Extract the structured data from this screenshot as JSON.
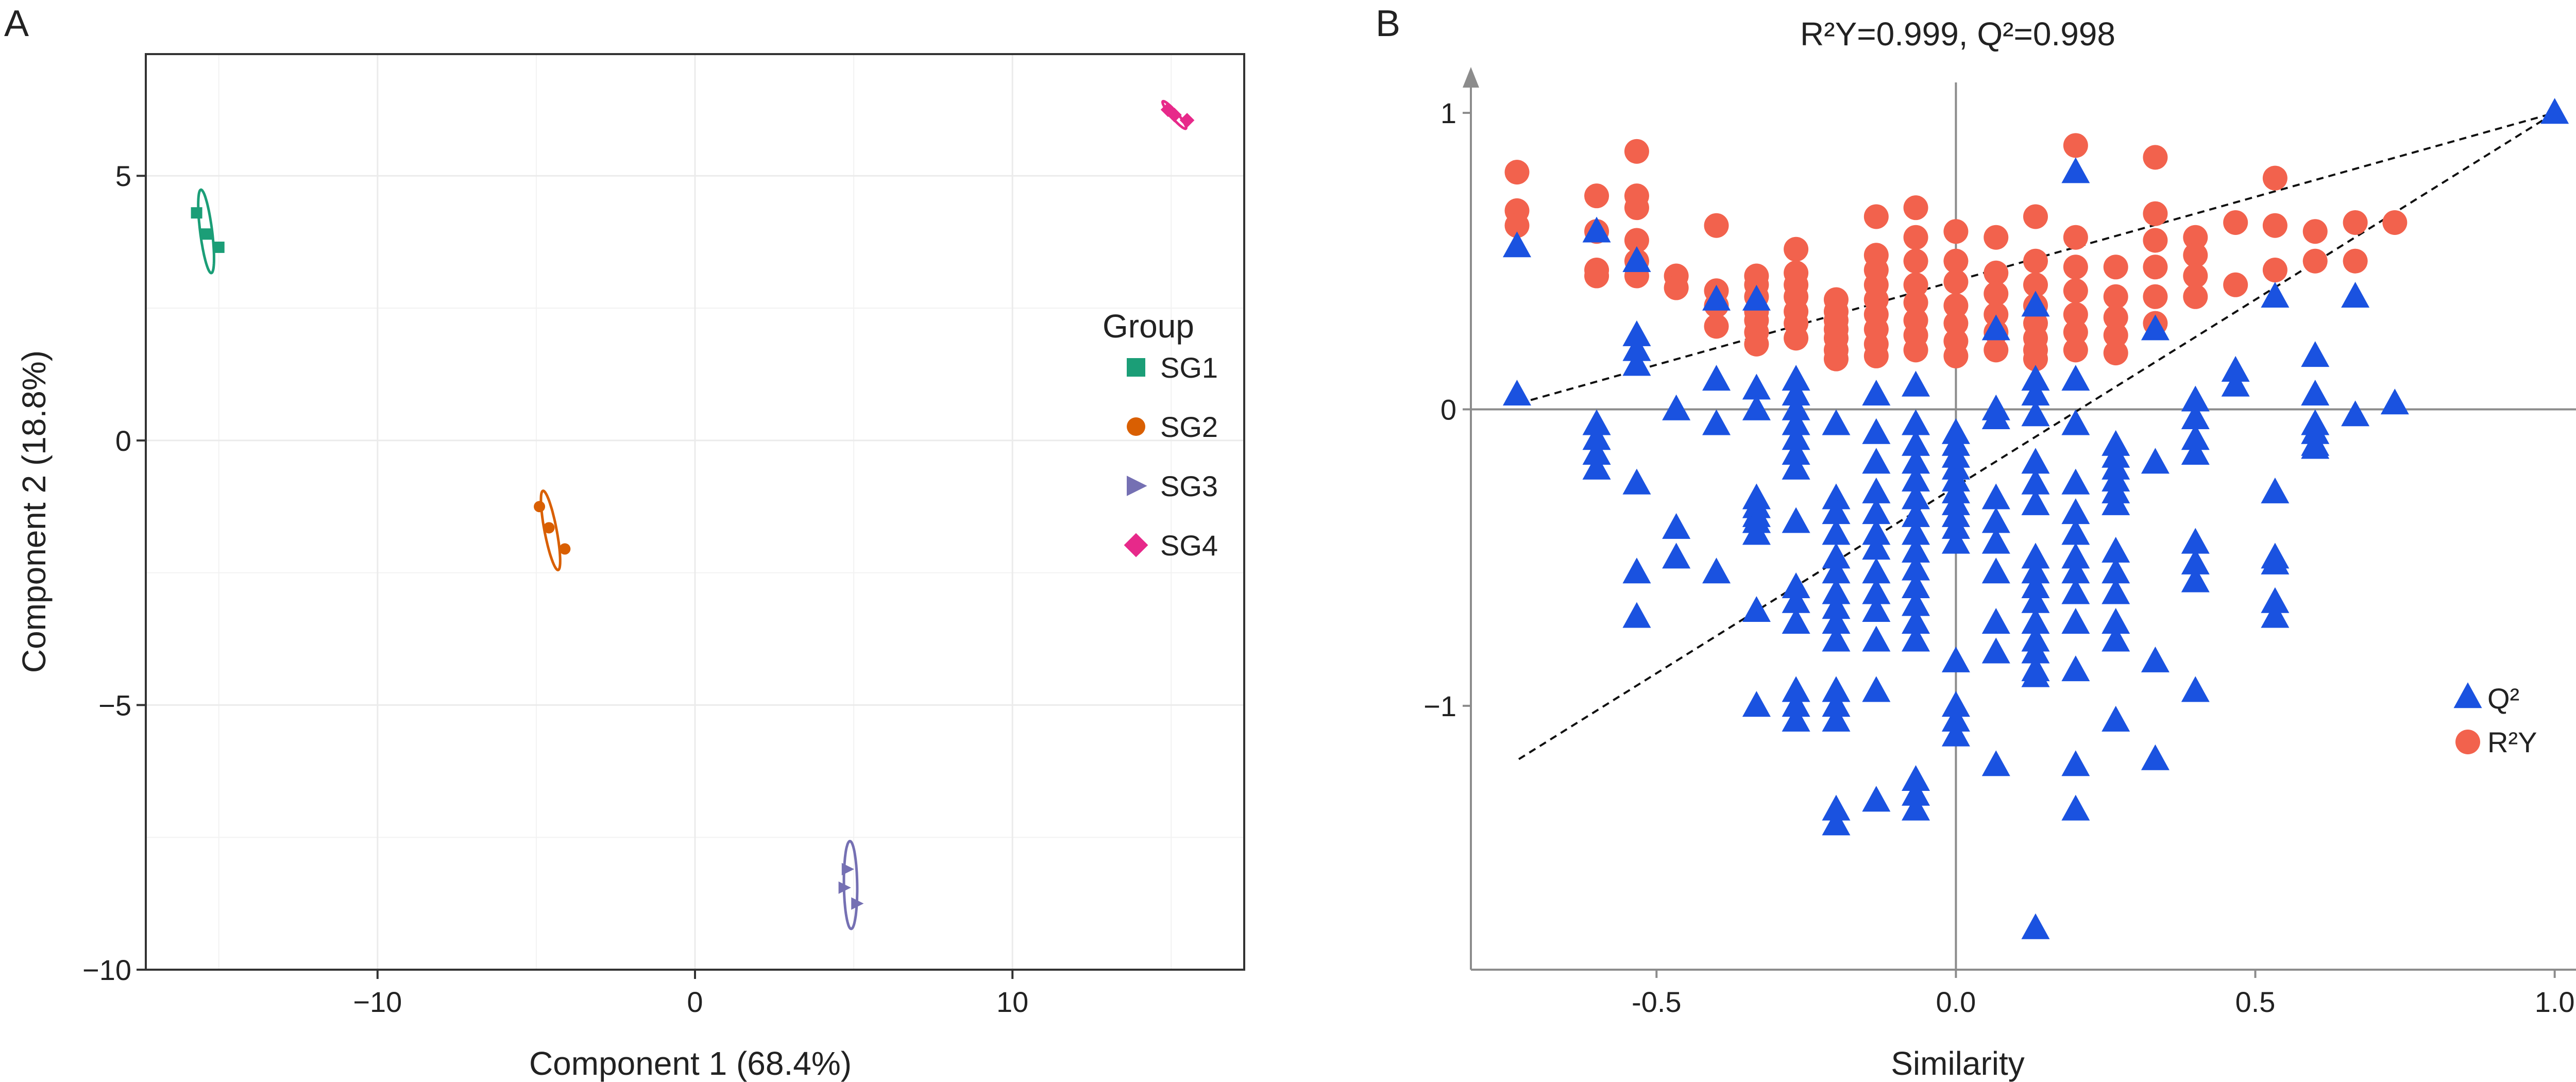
{
  "panel_a": {
    "label": "A"
  },
  "panel_b": {
    "label": "B"
  },
  "colors": {
    "SG1": "#1b9e77",
    "SG2": "#d95f02",
    "SG3": "#7570b3",
    "SG4": "#e7298a",
    "Q2": "#1a52e0",
    "R2Y": "#f2624d",
    "grid": "#ebebeb",
    "axis": "#333333",
    "refline": "#8c8c8c"
  },
  "chart_data": [
    {
      "type": "scatter",
      "title": "",
      "xlabel": "Component 1 (68.4%)",
      "ylabel": "Component 2 (18.8%)",
      "xlim": [
        -17.3,
        17.3
      ],
      "ylim": [
        -10,
        7.3
      ],
      "xticks": [
        -10,
        0,
        10
      ],
      "xtick_labels": [
        "−10",
        "0",
        "10"
      ],
      "yticks": [
        -10,
        -5,
        0,
        5
      ],
      "ytick_labels": [
        "−10",
        "−5",
        "0",
        "5"
      ],
      "grid": true,
      "legend": {
        "title": "Group",
        "position": "right",
        "entries": [
          "SG1",
          "SG2",
          "SG3",
          "SG4"
        ]
      },
      "series": [
        {
          "name": "SG1",
          "marker": "square",
          "x": [
            -15.7,
            -15.4,
            -15.0
          ],
          "y": [
            4.3,
            3.9,
            3.65
          ],
          "ellipse": {
            "cx": -15.4,
            "cy": 3.95,
            "semi_major": 0.85,
            "semi_minor": 0.32,
            "angle_deg": -66
          }
        },
        {
          "name": "SG2",
          "marker": "circle",
          "x": [
            -4.9,
            -4.6,
            -4.1
          ],
          "y": [
            -1.25,
            -1.65,
            -2.05
          ],
          "ellipse": {
            "cx": -4.55,
            "cy": -1.7,
            "semi_major": 0.88,
            "semi_minor": 0.3,
            "angle_deg": -56
          }
        },
        {
          "name": "SG3",
          "marker": "triangle-right",
          "x": [
            4.8,
            4.7,
            5.1
          ],
          "y": [
            -8.1,
            -8.45,
            -8.75
          ],
          "ellipse": {
            "cx": 4.9,
            "cy": -8.4,
            "semi_major": 0.83,
            "semi_minor": 0.38,
            "angle_deg": -87
          }
        },
        {
          "name": "SG4",
          "marker": "diamond",
          "x": [
            14.9,
            15.1,
            15.5
          ],
          "y": [
            6.25,
            6.15,
            6.05
          ],
          "ellipse": {
            "cx": 15.1,
            "cy": 6.15,
            "semi_major": 0.72,
            "semi_minor": 0.09,
            "angle_deg": -20
          }
        }
      ]
    },
    {
      "type": "scatter",
      "title": "R²Y=0.999, Q²=0.998",
      "xlabel": "Similarity",
      "ylabel": "",
      "xlim": [
        -0.81,
        1.07
      ],
      "ylim": [
        -1.89,
        1.12
      ],
      "xticks": [
        -0.5,
        0.0,
        0.5,
        1.0
      ],
      "xtick_labels": [
        "-0.5",
        "0.0",
        "0.5",
        "1.0"
      ],
      "yticks": [
        1,
        0,
        -1
      ],
      "ytick_labels": [
        "1",
        "0",
        "−1"
      ],
      "grid": false,
      "legend": {
        "position": "bottom-right",
        "entries": [
          {
            "name": "Q²",
            "marker": "triangle"
          },
          {
            "name": "R²Y",
            "marker": "circle"
          }
        ]
      },
      "reference_lines": [
        {
          "axis": "x",
          "value": 0
        },
        {
          "axis": "y",
          "value": 0
        }
      ],
      "regression_lines": [
        {
          "name": "R²Y",
          "x": [
            -0.73,
            1.0
          ],
          "y": [
            0.02,
            1.0
          ]
        },
        {
          "name": "Q²",
          "x": [
            -0.73,
            1.0
          ],
          "y": [
            -1.18,
            1.0
          ]
        }
      ],
      "series": [
        {
          "name": "R²Y",
          "marker": "circle",
          "x": [
            -0.733,
            -0.733,
            -0.733,
            -0.6,
            -0.6,
            -0.6,
            -0.6,
            -0.533,
            -0.533,
            -0.533,
            -0.533,
            -0.533,
            -0.533,
            -0.467,
            -0.467,
            -0.4,
            -0.4,
            -0.4,
            -0.4,
            -0.333,
            -0.333,
            -0.333,
            -0.333,
            -0.333,
            -0.333,
            -0.333,
            -0.267,
            -0.267,
            -0.267,
            -0.267,
            -0.267,
            -0.267,
            -0.267,
            -0.2,
            -0.2,
            -0.2,
            -0.2,
            -0.2,
            -0.2,
            -0.2,
            -0.133,
            -0.133,
            -0.133,
            -0.133,
            -0.133,
            -0.133,
            -0.133,
            -0.133,
            -0.133,
            -0.067,
            -0.067,
            -0.067,
            -0.067,
            -0.067,
            -0.067,
            -0.067,
            -0.067,
            0,
            0,
            0,
            0,
            0,
            0,
            0,
            0.067,
            0.067,
            0.067,
            0.067,
            0.067,
            0.067,
            0.133,
            0.133,
            0.133,
            0.133,
            0.133,
            0.133,
            0.133,
            0.133,
            0.2,
            0.2,
            0.2,
            0.2,
            0.2,
            0.2,
            0.2,
            0.267,
            0.267,
            0.267,
            0.267,
            0.267,
            0.333,
            0.333,
            0.333,
            0.333,
            0.333,
            0.333,
            0.4,
            0.4,
            0.4,
            0.4,
            0.467,
            0.467,
            0.533,
            0.533,
            0.533,
            0.6,
            0.6,
            0.667,
            0.667,
            0.733
          ],
          "y": [
            0.8,
            0.67,
            0.62,
            0.72,
            0.6,
            0.47,
            0.45,
            0.87,
            0.72,
            0.68,
            0.57,
            0.5,
            0.45,
            0.45,
            0.41,
            0.62,
            0.4,
            0.35,
            0.28,
            0.45,
            0.42,
            0.38,
            0.33,
            0.3,
            0.26,
            0.22,
            0.54,
            0.46,
            0.42,
            0.38,
            0.33,
            0.29,
            0.24,
            0.37,
            0.33,
            0.3,
            0.27,
            0.24,
            0.2,
            0.17,
            0.65,
            0.52,
            0.47,
            0.42,
            0.37,
            0.32,
            0.27,
            0.22,
            0.18,
            0.68,
            0.58,
            0.5,
            0.42,
            0.36,
            0.3,
            0.25,
            0.2,
            0.6,
            0.5,
            0.43,
            0.35,
            0.29,
            0.23,
            0.18,
            0.58,
            0.46,
            0.39,
            0.32,
            0.26,
            0.2,
            0.65,
            0.5,
            0.42,
            0.35,
            0.29,
            0.24,
            0.2,
            0.17,
            0.89,
            0.58,
            0.48,
            0.4,
            0.32,
            0.26,
            0.2,
            0.48,
            0.38,
            0.31,
            0.25,
            0.19,
            0.85,
            0.66,
            0.57,
            0.48,
            0.38,
            0.29,
            0.58,
            0.52,
            0.45,
            0.38,
            0.63,
            0.42,
            0.78,
            0.62,
            0.47,
            0.6,
            0.5,
            0.63,
            0.5,
            0.63
          ]
        },
        {
          "name": "Q²",
          "marker": "triangle",
          "x": [
            -0.733,
            -0.733,
            -0.6,
            -0.6,
            -0.6,
            -0.6,
            -0.6,
            -0.533,
            -0.533,
            -0.533,
            -0.533,
            -0.533,
            -0.533,
            -0.533,
            -0.533,
            -0.467,
            -0.467,
            -0.467,
            -0.4,
            -0.4,
            -0.4,
            -0.4,
            -0.333,
            -0.333,
            -0.333,
            -0.333,
            -0.333,
            -0.333,
            -0.333,
            -0.333,
            -0.333,
            -0.333,
            -0.333,
            -0.267,
            -0.267,
            -0.267,
            -0.267,
            -0.267,
            -0.267,
            -0.267,
            -0.267,
            -0.267,
            -0.267,
            -0.267,
            -0.267,
            -0.267,
            -0.267,
            -0.2,
            -0.2,
            -0.2,
            -0.2,
            -0.2,
            -0.2,
            -0.2,
            -0.2,
            -0.2,
            -0.2,
            -0.2,
            -0.2,
            -0.2,
            -0.2,
            -0.2,
            -0.133,
            -0.133,
            -0.133,
            -0.133,
            -0.133,
            -0.133,
            -0.133,
            -0.133,
            -0.133,
            -0.133,
            -0.133,
            -0.133,
            -0.133,
            -0.067,
            -0.067,
            -0.067,
            -0.067,
            -0.067,
            -0.067,
            -0.067,
            -0.067,
            -0.067,
            -0.067,
            -0.067,
            -0.067,
            -0.067,
            -0.067,
            -0.067,
            -0.067,
            -0.067,
            0,
            0,
            0,
            0,
            0,
            0,
            0,
            0,
            0,
            0,
            0,
            0,
            0,
            0,
            0.067,
            0.067,
            0.067,
            0.067,
            0.067,
            0.067,
            0.067,
            0.067,
            0.067,
            0.067,
            0.133,
            0.133,
            0.133,
            0.133,
            0.133,
            0.133,
            0.133,
            0.133,
            0.133,
            0.133,
            0.133,
            0.133,
            0.133,
            0.133,
            0.133,
            0.133,
            0.133,
            0.2,
            0.2,
            0.2,
            0.2,
            0.2,
            0.2,
            0.2,
            0.2,
            0.2,
            0.2,
            0.2,
            0.2,
            0.2,
            0.267,
            0.267,
            0.267,
            0.267,
            0.267,
            0.267,
            0.267,
            0.267,
            0.267,
            0.267,
            0.267,
            0.267,
            0.333,
            0.333,
            0.333,
            0.333,
            0.4,
            0.4,
            0.4,
            0.4,
            0.4,
            0.4,
            0.4,
            0.4,
            0.467,
            0.467,
            0.533,
            0.533,
            0.533,
            0.533,
            0.533,
            0.533,
            0.6,
            0.6,
            0.6,
            0.6,
            0.6,
            0.6,
            0.667,
            0.667,
            0.733,
            1.0
          ],
          "y": [
            0.55,
            0.05,
            0.6,
            -0.05,
            -0.1,
            -0.15,
            -0.2,
            0.5,
            0.25,
            0.2,
            0.15,
            -0.25,
            -0.55,
            -0.7,
            0.5,
            -0.0,
            -0.4,
            -0.5,
            0.1,
            -0.05,
            -0.55,
            0.37,
            0.07,
            0.0,
            -0.3,
            -0.33,
            -0.36,
            -0.38,
            -0.38,
            -0.42,
            -0.68,
            -1.0,
            0.37,
            0.1,
            0.05,
            0.0,
            -0.05,
            -0.1,
            -0.15,
            -0.2,
            -0.38,
            -0.6,
            -0.65,
            -0.72,
            -0.95,
            -1.0,
            -1.05,
            -0.05,
            -0.3,
            -0.35,
            -0.42,
            -0.5,
            -0.55,
            -0.62,
            -0.67,
            -0.72,
            -0.78,
            -0.95,
            -1.0,
            -1.05,
            -1.35,
            -1.4,
            0.05,
            -0.08,
            -0.18,
            -0.28,
            -0.35,
            -0.42,
            -0.47,
            -0.55,
            -0.62,
            -0.68,
            -0.78,
            -0.95,
            -1.32,
            0.08,
            -0.05,
            -0.12,
            -0.18,
            -0.24,
            -0.3,
            -0.36,
            -0.42,
            -0.48,
            -0.54,
            -0.6,
            -0.66,
            -0.72,
            -0.78,
            -1.25,
            -1.3,
            -1.35,
            -0.08,
            -0.12,
            -0.16,
            -0.2,
            -0.24,
            -0.28,
            -0.32,
            -0.36,
            -0.4,
            -0.45,
            -0.85,
            -1.0,
            -1.05,
            -1.1,
            0.27,
            0.0,
            -0.03,
            -0.3,
            -0.38,
            -0.45,
            -0.55,
            -0.72,
            -0.82,
            -1.2,
            0.35,
            0.1,
            0.05,
            -0.02,
            -0.18,
            -0.25,
            -0.32,
            -0.5,
            -0.55,
            -0.6,
            -0.65,
            -0.72,
            -0.78,
            -0.82,
            -0.88,
            -0.9,
            -1.75,
            0.8,
            0.1,
            -0.05,
            -0.25,
            -0.35,
            -0.42,
            -0.5,
            -0.55,
            -0.62,
            -0.72,
            -0.88,
            -1.2,
            -1.35,
            -0.12,
            -0.16,
            -0.2,
            -0.24,
            -0.28,
            -0.32,
            -0.48,
            -0.55,
            -0.62,
            -0.72,
            -0.78,
            -1.05,
            0.27,
            -0.18,
            -0.85,
            -1.18,
            0.03,
            -0.03,
            -0.1,
            -0.15,
            -0.45,
            -0.52,
            -0.58,
            -0.95,
            0.13,
            0.08,
            0.38,
            -0.28,
            -0.5,
            -0.52,
            -0.65,
            -0.7,
            0.18,
            0.05,
            -0.05,
            -0.08,
            -0.12,
            -0.13,
            0.38,
            -0.02,
            0.02,
            1.0
          ]
        }
      ]
    }
  ]
}
